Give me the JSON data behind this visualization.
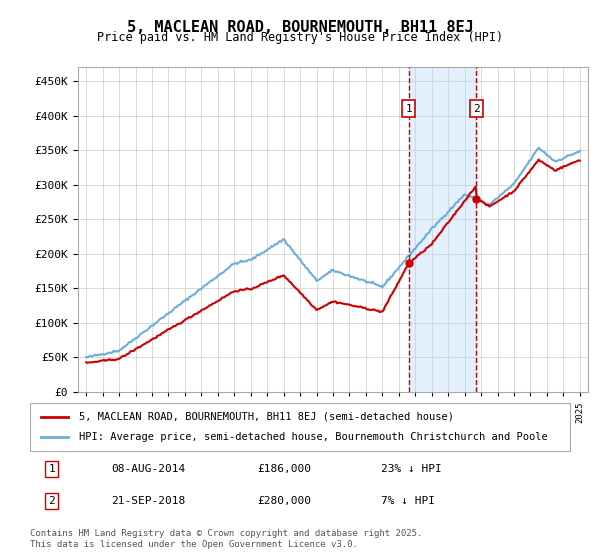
{
  "title": "5, MACLEAN ROAD, BOURNEMOUTH, BH11 8EJ",
  "subtitle": "Price paid vs. HM Land Registry's House Price Index (HPI)",
  "legend_line1": "5, MACLEAN ROAD, BOURNEMOUTH, BH11 8EJ (semi-detached house)",
  "legend_line2": "HPI: Average price, semi-detached house, Bournemouth Christchurch and Poole",
  "footnote": "Contains HM Land Registry data © Crown copyright and database right 2025.\nThis data is licensed under the Open Government Licence v3.0.",
  "transaction1_label": "1",
  "transaction1_date": "08-AUG-2014",
  "transaction1_price": "£186,000",
  "transaction1_hpi": "23% ↓ HPI",
  "transaction2_label": "2",
  "transaction2_date": "21-SEP-2018",
  "transaction2_price": "£280,000",
  "transaction2_hpi": "7% ↓ HPI",
  "transaction1_year": 2014.6,
  "transaction2_year": 2018.72,
  "hpi_color": "#6baed6",
  "price_color": "#cc0000",
  "marker_color": "#cc0000",
  "shade_color": "#ddeeff",
  "grid_color": "#cccccc",
  "vline_color": "#cc0000",
  "ylim": [
    0,
    470000
  ],
  "yticks": [
    0,
    50000,
    100000,
    150000,
    200000,
    250000,
    300000,
    350000,
    400000,
    450000
  ],
  "xlim_start": 1994.5,
  "xlim_end": 2025.5
}
